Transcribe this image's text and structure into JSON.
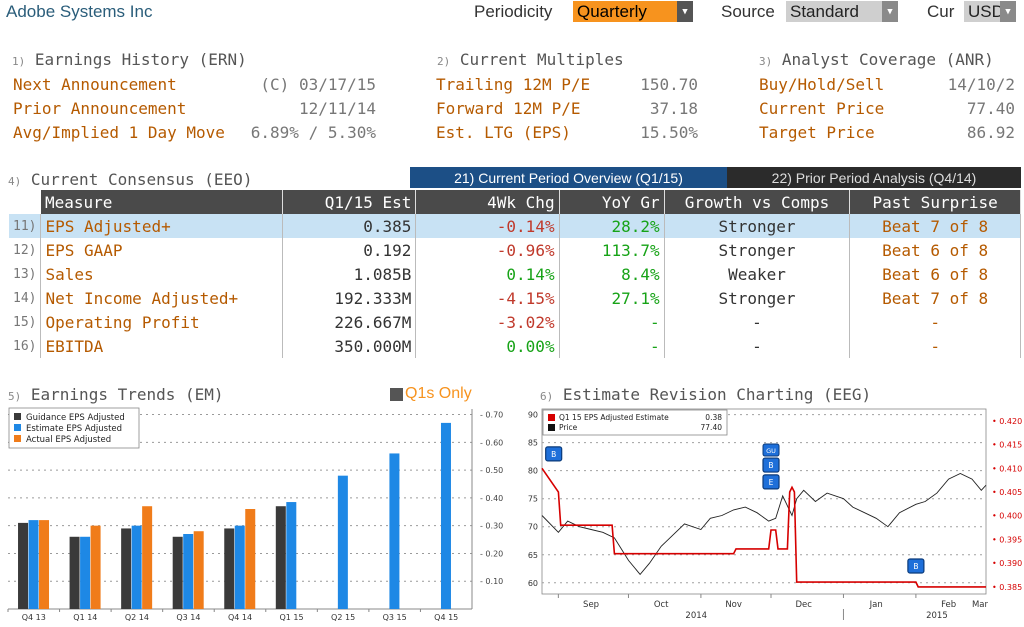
{
  "header": {
    "title": "Adobe Systems Inc",
    "periodicity_label": "Periodicity",
    "periodicity_value": "Quarterly",
    "source_label": "Source",
    "source_value": "Standard",
    "cur_label": "Cur",
    "cur_value": "USD"
  },
  "earnings_history": {
    "num": "1)",
    "title": "Earnings History (ERN)",
    "rows": [
      {
        "label": "Next Announcement",
        "value": "(C)  03/17/15"
      },
      {
        "label": "Prior Announcement",
        "value": "12/11/14"
      },
      {
        "label": "Avg/Implied 1 Day Move",
        "value": "6.89% / 5.30%"
      }
    ]
  },
  "current_multiples": {
    "num": "2)",
    "title": "Current Multiples",
    "rows": [
      {
        "label": "Trailing 12M P/E",
        "value": "150.70"
      },
      {
        "label": "Forward 12M P/E",
        "value": "37.18"
      },
      {
        "label": "Est. LTG (EPS)",
        "value": "15.50%"
      }
    ]
  },
  "analyst_coverage": {
    "num": "3)",
    "title": "Analyst Coverage (ANR)",
    "rows": [
      {
        "label": "Buy/Hold/Sell",
        "value": "14/10/2"
      },
      {
        "label": "Current Price",
        "value": "77.40"
      },
      {
        "label": "Target Price",
        "value": "86.92"
      }
    ]
  },
  "consensus": {
    "num": "4)",
    "title": "Current Consensus (EEO)",
    "tab_current": "21) Current Period Overview (Q1/15)",
    "tab_prior": "22) Prior Period Analysis (Q4/14)",
    "columns": [
      "Measure",
      "Q1/15 Est",
      "4Wk Chg",
      "YoY Gr",
      "Growth vs Comps",
      "Past Surprise"
    ],
    "rows": [
      {
        "num": "11)",
        "measure": "EPS Adjusted+",
        "est": "0.385",
        "chg": "-0.14%",
        "yoy": "28.2%",
        "growth": "Stronger",
        "surprise": "Beat 7 of 8"
      },
      {
        "num": "12)",
        "measure": "EPS GAAP",
        "est": "0.192",
        "chg": "-0.96%",
        "yoy": "113.7%",
        "growth": "Stronger",
        "surprise": "Beat 6 of 8"
      },
      {
        "num": "13)",
        "measure": "Sales",
        "est": "1.085B",
        "chg": "0.14%",
        "yoy": "8.4%",
        "growth": "Weaker",
        "surprise": "Beat 6 of 8"
      },
      {
        "num": "14)",
        "measure": "Net Income Adjusted+",
        "est": "192.333M",
        "chg": "-4.15%",
        "yoy": "27.1%",
        "growth": "Stronger",
        "surprise": "Beat 7 of 8"
      },
      {
        "num": "15)",
        "measure": "Operating Profit",
        "est": "226.667M",
        "chg": "-3.02%",
        "yoy": "-",
        "growth": "-",
        "surprise": "-"
      },
      {
        "num": "16)",
        "measure": "EBITDA",
        "est": "350.000M",
        "chg": "0.00%",
        "yoy": "-",
        "growth": "-",
        "surprise": "-"
      }
    ]
  },
  "earnings_trends": {
    "num": "5)",
    "title": "Earnings Trends (EM)",
    "q1s_label": "Q1s Only"
  },
  "estimate_revision": {
    "num": "6)",
    "title": "Estimate Revision Charting (EEG)"
  },
  "chart_data": [
    {
      "type": "bar",
      "categories": [
        "Q4 13",
        "Q1 14",
        "Q2 14",
        "Q3 14",
        "Q4 14",
        "Q1 15",
        "Q2 15",
        "Q3 15",
        "Q4 15"
      ],
      "series": [
        {
          "name": "Guidance EPS Adjusted",
          "color": "#3a3a3a",
          "values": [
            0.31,
            0.26,
            0.29,
            0.26,
            0.29,
            0.37,
            null,
            null,
            null
          ]
        },
        {
          "name": "Estimate EPS Adjusted",
          "color": "#1e88e5",
          "values": [
            0.32,
            0.26,
            0.3,
            0.27,
            0.3,
            0.385,
            0.48,
            0.56,
            0.67
          ]
        },
        {
          "name": "Actual EPS Adjusted",
          "color": "#f07c1a",
          "values": [
            0.32,
            0.3,
            0.37,
            0.28,
            0.36,
            null,
            null,
            null,
            null
          ]
        }
      ],
      "y_ticks": [
        "0.10",
        "0.20",
        "0.30",
        "0.40",
        "0.50",
        "0.60",
        "0.70"
      ],
      "ylim": [
        0.0,
        0.72
      ],
      "legend_position": "top-left"
    },
    {
      "type": "line",
      "x_ticks": [
        "Sep",
        "Oct",
        "Nov",
        "Dec",
        "Jan",
        "Feb",
        "Mar"
      ],
      "x_years": [
        "2014",
        "2015"
      ],
      "left_ticks": [
        "60",
        "65",
        "70",
        "75",
        "80",
        "85",
        "90"
      ],
      "right_ticks": [
        "0.385",
        "0.390",
        "0.395",
        "0.400",
        "0.405",
        "0.410",
        "0.415",
        "0.420"
      ],
      "left_ylim": [
        58,
        91
      ],
      "right_ylim": [
        0.3835,
        0.4225
      ],
      "legend": [
        {
          "name": "Q1 15 EPS Adjusted Estimate",
          "value": "0.38",
          "color": "#d60000"
        },
        {
          "name": "Price",
          "value": "77.40",
          "color": "#111111"
        }
      ],
      "series": [
        {
          "name": "Q1 15 EPS Adjusted Estimate",
          "axis": "right",
          "x": [
            "2014-08-25",
            "2014-09-01",
            "2014-09-02",
            "2014-09-24",
            "2014-09-25",
            "2014-11-15",
            "2014-11-16",
            "2014-11-30",
            "2014-12-01",
            "2014-12-03",
            "2014-12-04",
            "2014-12-08",
            "2014-12-09",
            "2014-12-10",
            "2014-12-11",
            "2014-12-12",
            "2015-02-01",
            "2015-02-02",
            "2015-03-03"
          ],
          "y": [
            0.41,
            0.405,
            0.398,
            0.398,
            0.392,
            0.392,
            0.393,
            0.393,
            0.397,
            0.397,
            0.393,
            0.393,
            0.405,
            0.406,
            0.405,
            0.386,
            0.386,
            0.385,
            0.385
          ]
        },
        {
          "name": "Price",
          "axis": "left",
          "x": [
            "2014-08-25",
            "2014-09-01",
            "2014-09-05",
            "2014-09-10",
            "2014-09-15",
            "2014-09-20",
            "2014-09-25",
            "2014-10-01",
            "2014-10-06",
            "2014-10-10",
            "2014-10-15",
            "2014-10-20",
            "2014-10-25",
            "2014-11-01",
            "2014-11-05",
            "2014-11-10",
            "2014-11-15",
            "2014-11-20",
            "2014-11-25",
            "2014-11-30",
            "2014-12-03",
            "2014-12-06",
            "2014-12-10",
            "2014-12-12",
            "2014-12-15",
            "2014-12-20",
            "2014-12-25",
            "2015-01-01",
            "2015-01-05",
            "2015-01-10",
            "2015-01-15",
            "2015-01-20",
            "2015-01-25",
            "2015-02-01",
            "2015-02-05",
            "2015-02-10",
            "2015-02-15",
            "2015-02-20",
            "2015-02-25",
            "2015-03-01",
            "2015-03-03"
          ],
          "y": [
            72.0,
            69.0,
            71.0,
            70.0,
            69.5,
            69.0,
            68.0,
            64.0,
            61.5,
            63.5,
            66.5,
            68.5,
            70.5,
            69.5,
            71.5,
            72.0,
            73.0,
            73.5,
            72.5,
            71.0,
            71.5,
            75.5,
            72.0,
            75.0,
            76.5,
            74.5,
            76.0,
            75.0,
            73.5,
            72.5,
            71.5,
            70.0,
            72.5,
            74.0,
            74.5,
            76.0,
            78.5,
            79.5,
            78.5,
            76.5,
            77.4
          ]
        }
      ],
      "markers": [
        {
          "date": "2014-08-30",
          "value": 83,
          "label": "B",
          "top_label": ""
        },
        {
          "date": "2014-12-01",
          "value": 81,
          "label": "B",
          "top_label": "GU"
        },
        {
          "date": "2014-12-01",
          "value": 78,
          "label": "E",
          "top_label": ""
        },
        {
          "date": "2015-02-01",
          "value": 63,
          "label": "B",
          "top_label": ""
        }
      ]
    }
  ]
}
